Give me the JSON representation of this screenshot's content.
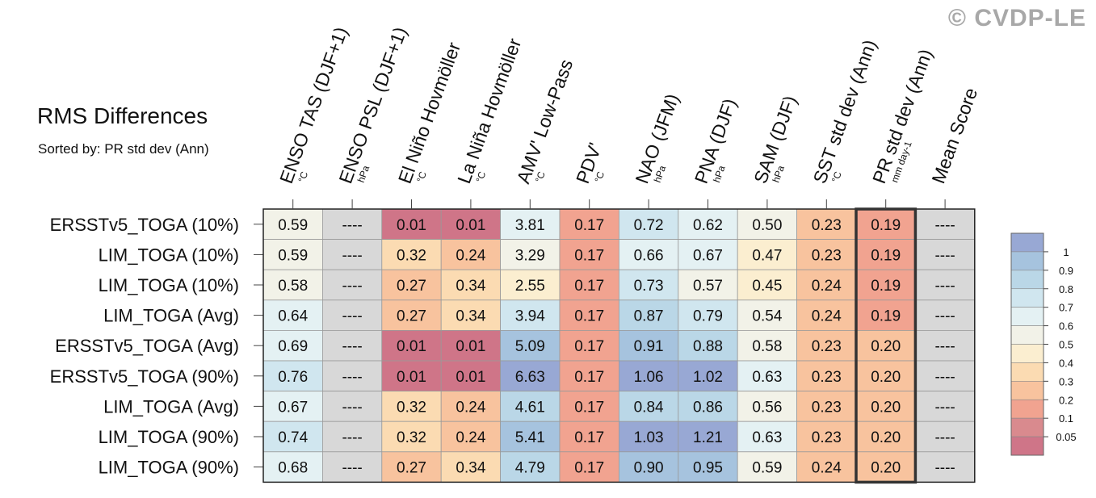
{
  "watermark": "© CVDP-LE",
  "chart_data": {
    "type": "table",
    "title": "RMS Differences",
    "subtitle": "Sorted by: PR std dev (Ann)",
    "highlighted_column": "PR std dev (Ann)",
    "columns": [
      {
        "name": "ENSO TAS (DJF+1)",
        "unit": "°C"
      },
      {
        "name": "ENSO PSL (DJF+1)",
        "unit": "hPa"
      },
      {
        "name": "El Niño Hovmöller",
        "unit": "°C"
      },
      {
        "name": "La Niña Hovmöller",
        "unit": "°C"
      },
      {
        "name": "AMV' Low-Pass",
        "unit": "°C"
      },
      {
        "name": "PDV'",
        "unit": "°C"
      },
      {
        "name": "NAO (JFM)",
        "unit": "hPa"
      },
      {
        "name": "PNA (DJF)",
        "unit": "hPa"
      },
      {
        "name": "SAM (DJF)",
        "unit": "hPa"
      },
      {
        "name": "SST std dev (Ann)",
        "unit": "°C"
      },
      {
        "name": "PR std dev (Ann)",
        "unit": "mm day-1"
      },
      {
        "name": "Mean Score",
        "unit": ""
      }
    ],
    "rows": [
      {
        "name": "ERSSTv5_TOGA (10%)",
        "values": [
          "0.59",
          "----",
          "0.01",
          "0.01",
          "3.81",
          "0.17",
          "0.72",
          "0.62",
          "0.50",
          "0.23",
          "0.19",
          "----"
        ]
      },
      {
        "name": "LIM_TOGA (10%)",
        "values": [
          "0.59",
          "----",
          "0.32",
          "0.24",
          "3.29",
          "0.17",
          "0.66",
          "0.67",
          "0.47",
          "0.23",
          "0.19",
          "----"
        ]
      },
      {
        "name": "LIM_TOGA (10%)",
        "values": [
          "0.58",
          "----",
          "0.27",
          "0.34",
          "2.55",
          "0.17",
          "0.73",
          "0.57",
          "0.45",
          "0.24",
          "0.19",
          "----"
        ]
      },
      {
        "name": "LIM_TOGA (Avg)",
        "values": [
          "0.64",
          "----",
          "0.27",
          "0.34",
          "3.94",
          "0.17",
          "0.87",
          "0.79",
          "0.54",
          "0.24",
          "0.19",
          "----"
        ]
      },
      {
        "name": "ERSSTv5_TOGA (Avg)",
        "values": [
          "0.69",
          "----",
          "0.01",
          "0.01",
          "5.09",
          "0.17",
          "0.91",
          "0.88",
          "0.58",
          "0.23",
          "0.20",
          "----"
        ]
      },
      {
        "name": "ERSSTv5_TOGA (90%)",
        "values": [
          "0.76",
          "----",
          "0.01",
          "0.01",
          "6.63",
          "0.17",
          "1.06",
          "1.02",
          "0.63",
          "0.23",
          "0.20",
          "----"
        ]
      },
      {
        "name": "LIM_TOGA (Avg)",
        "values": [
          "0.67",
          "----",
          "0.32",
          "0.24",
          "4.61",
          "0.17",
          "0.84",
          "0.86",
          "0.56",
          "0.23",
          "0.20",
          "----"
        ]
      },
      {
        "name": "LIM_TOGA (90%)",
        "values": [
          "0.74",
          "----",
          "0.32",
          "0.24",
          "5.41",
          "0.17",
          "1.03",
          "1.21",
          "0.63",
          "0.23",
          "0.20",
          "----"
        ]
      },
      {
        "name": "LIM_TOGA (90%)",
        "values": [
          "0.68",
          "----",
          "0.27",
          "0.34",
          "4.79",
          "0.17",
          "0.90",
          "0.95",
          "0.59",
          "0.24",
          "0.20",
          "----"
        ]
      }
    ],
    "colorbar": {
      "labels": [
        "1",
        "0.9",
        "0.8",
        "0.7",
        "0.6",
        "0.5",
        "0.4",
        "0.3",
        "0.2",
        "0.1",
        "0.05"
      ],
      "colors": [
        "#98a8d4",
        "#a6c3de",
        "#bad7e7",
        "#d0e6ef",
        "#e4f1f3",
        "#f2f2e8",
        "#fbeed0",
        "#fbdbb2",
        "#f8c39e",
        "#f1a390",
        "#d98a8e",
        "#cf7588"
      ],
      "missing_color": "#d8d8d8"
    }
  }
}
